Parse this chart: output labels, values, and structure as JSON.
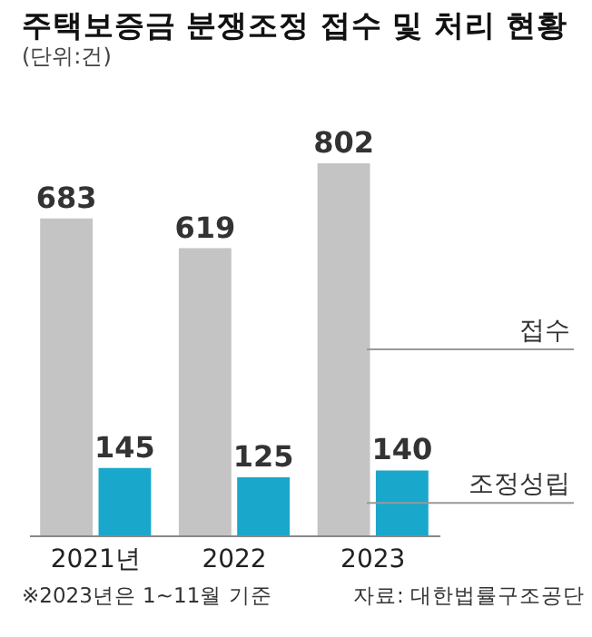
{
  "chart_data": {
    "type": "bar",
    "title": "주택보증금 분쟁조정 접수 및 처리 현황",
    "subtitle": "(단위:건)",
    "categories": [
      "2021년",
      "2022",
      "2023"
    ],
    "series": [
      {
        "name": "접수",
        "color": "#c4c4c4",
        "values": [
          683,
          619,
          802
        ]
      },
      {
        "name": "조정성립",
        "color": "#1aa7cc",
        "values": [
          145,
          125,
          140
        ]
      }
    ],
    "data_labels": true,
    "annotations": [
      "※2023년은 1~11월 기준",
      "자료: 대한법률구조공단"
    ]
  }
}
